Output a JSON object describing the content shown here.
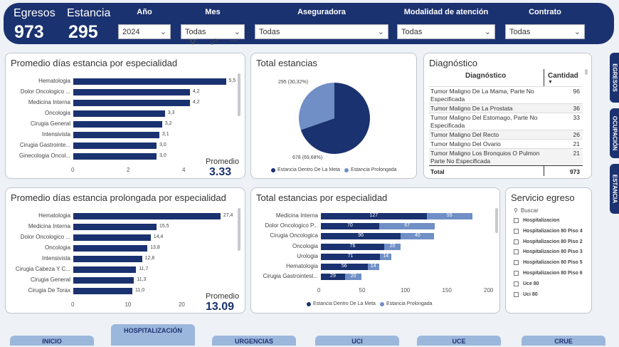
{
  "kpis": {
    "egresos_label": "Egresos",
    "egresos_value": "973",
    "estancia_label": "Estancia",
    "estancia_value": "295"
  },
  "filters": [
    {
      "label": "Año",
      "value": "2024"
    },
    {
      "label": "Mes",
      "value": "Todas"
    },
    {
      "label": "Aseguradora",
      "value": "Todas"
    },
    {
      "label": "Modalidad de atención",
      "value": "Todas"
    },
    {
      "label": "Contrato",
      "value": "Todas"
    }
  ],
  "colors": {
    "primary": "#1b3270",
    "secondary": "#6f8fc6",
    "header": "#1b3270"
  },
  "chart1": {
    "title": "Promedio días estancia por especialidad",
    "promedio_label": "Promedio",
    "promedio_value": "3.33",
    "chart_data": {
      "type": "bar",
      "orientation": "horizontal",
      "categories": [
        "Hematologia",
        "Dolor Oncologico ...",
        "Medicina Interna",
        "Oncologia",
        "Cirugia General",
        "Intensivista",
        "Cirugia Gastrointe...",
        "Ginecologia Oncol..."
      ],
      "values": [
        5.5,
        4.2,
        4.2,
        3.3,
        3.2,
        3.1,
        3.0,
        3.0
      ],
      "labels": [
        "5,5",
        "4,2",
        "4,2",
        "3,3",
        "3,2",
        "3,1",
        "3,0",
        "3,0"
      ],
      "xlim": [
        0,
        6
      ],
      "xticks": [
        "0",
        "2",
        "4"
      ]
    }
  },
  "chart2": {
    "title": "Total estancias",
    "chart_data": {
      "type": "pie",
      "slices": [
        {
          "name": "Estancia Dentro De La Meta",
          "value": 678,
          "label": "678 (69,68%)"
        },
        {
          "name": "Estancia Prolongada",
          "value": 295,
          "label": "295 (30,32%)"
        }
      ]
    }
  },
  "diagnostico": {
    "title": "Diagnóstico",
    "col1": "Diagnóstico",
    "col2": "Cantidad",
    "rows": [
      {
        "d": "Tumor Maligno De La Mama, Parte No Especificada",
        "c": "96"
      },
      {
        "d": "Tumor Maligno De La Prostata",
        "c": "36"
      },
      {
        "d": "Tumor Maligno Del Estomago, Parte No Especificada",
        "c": "33"
      },
      {
        "d": "Tumor Maligno Del Recto",
        "c": "26"
      },
      {
        "d": "Tumor Maligno Del Ovario",
        "c": "21"
      },
      {
        "d": "Tumor Maligno Los Bronquios O Pulmon Parte No Especificada",
        "c": "21"
      }
    ],
    "total_label": "Total",
    "total_value": "973"
  },
  "chart3": {
    "title": "Promedio días estancia prolongada por especialidad",
    "promedio_label": "Promedio",
    "promedio_value": "13.09",
    "chart_data": {
      "type": "bar",
      "orientation": "horizontal",
      "categories": [
        "Hematologia",
        "Medicina Interna",
        "Dolor Oncologico ...",
        "Oncologia",
        "Intensivista",
        "Cirugia Cabeza Y C...",
        "Cirugia General",
        "Cirugia De Torax"
      ],
      "values": [
        27.4,
        15.5,
        14.4,
        13.8,
        12.8,
        11.7,
        11.3,
        11.0
      ],
      "labels": [
        "27,4",
        "15,5",
        "14,4",
        "13,8",
        "12,8",
        "11,7",
        "11,3",
        "11,0"
      ],
      "xlim": [
        0,
        31
      ],
      "xticks": [
        "0",
        "10",
        "20"
      ]
    }
  },
  "chart4": {
    "title": "Total estancias por especialidad",
    "chart_data": {
      "type": "bar",
      "orientation": "horizontal",
      "stacked": true,
      "categories": [
        "Medicina Interna",
        "Dolor Oncologico P...",
        "Cirugia Oncologica",
        "Oncologia",
        "Urologia",
        "Hematologia",
        "Cirugia Gastrointest..."
      ],
      "series": [
        {
          "name": "Estancia Dentro De La Meta",
          "values": [
            127,
            70,
            96,
            76,
            71,
            56,
            29
          ]
        },
        {
          "name": "Estancia Prolongada",
          "values": [
            55,
            67,
            40,
            20,
            14,
            14,
            20
          ]
        }
      ],
      "xlim": [
        0,
        200
      ],
      "xticks": [
        "0",
        "50",
        "100",
        "150",
        "200"
      ]
    }
  },
  "servicio": {
    "title": "Servicio egreso",
    "search_placeholder": "Buscar",
    "items": [
      "Hospitalizacion",
      "Hospitalizacion 80 Piso 4",
      "Hospitalizacion 80 Piso 2",
      "Hospitalizacion 80 Piso 3",
      "Hospitalizacion 80 Piso 5",
      "Hospitalizacion 80 Piso 6",
      "Uce 80",
      "Uci 80"
    ]
  },
  "side_tabs": [
    "EGRESOS",
    "OCUPACIÓN",
    "ESTANCIA"
  ],
  "nav_tabs": [
    "INICIO",
    "HOSPITALIZACIÓN",
    "URGENCIAS",
    "UCI",
    "UCE",
    "CRUE"
  ]
}
